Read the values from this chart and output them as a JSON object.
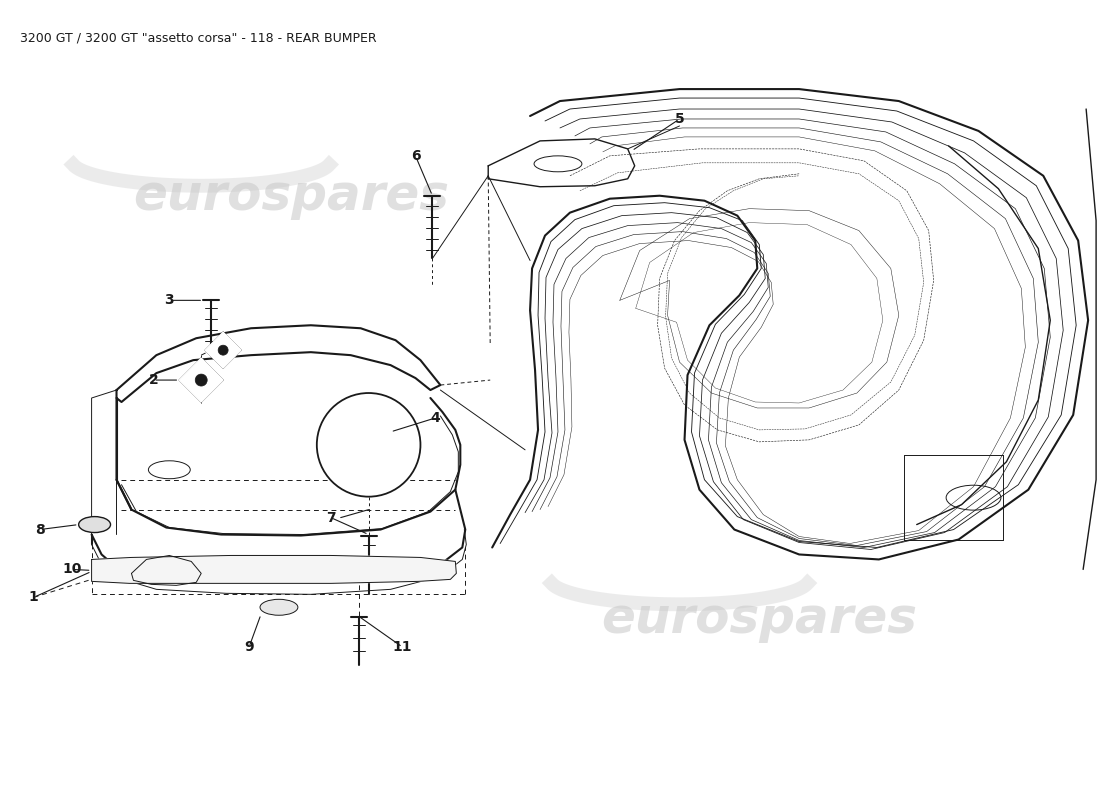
{
  "title": "3200 GT / 3200 GT \"assetto corsa\" - 118 - REAR BUMPER",
  "title_fontsize": 9,
  "bg_color": "#ffffff",
  "line_color": "#1a1a1a",
  "watermark_text": "eurospares",
  "watermark_color": "#c8c8c8",
  "watermark_alpha": 0.55,
  "figsize": [
    11.0,
    8.0
  ],
  "dpi": 100
}
